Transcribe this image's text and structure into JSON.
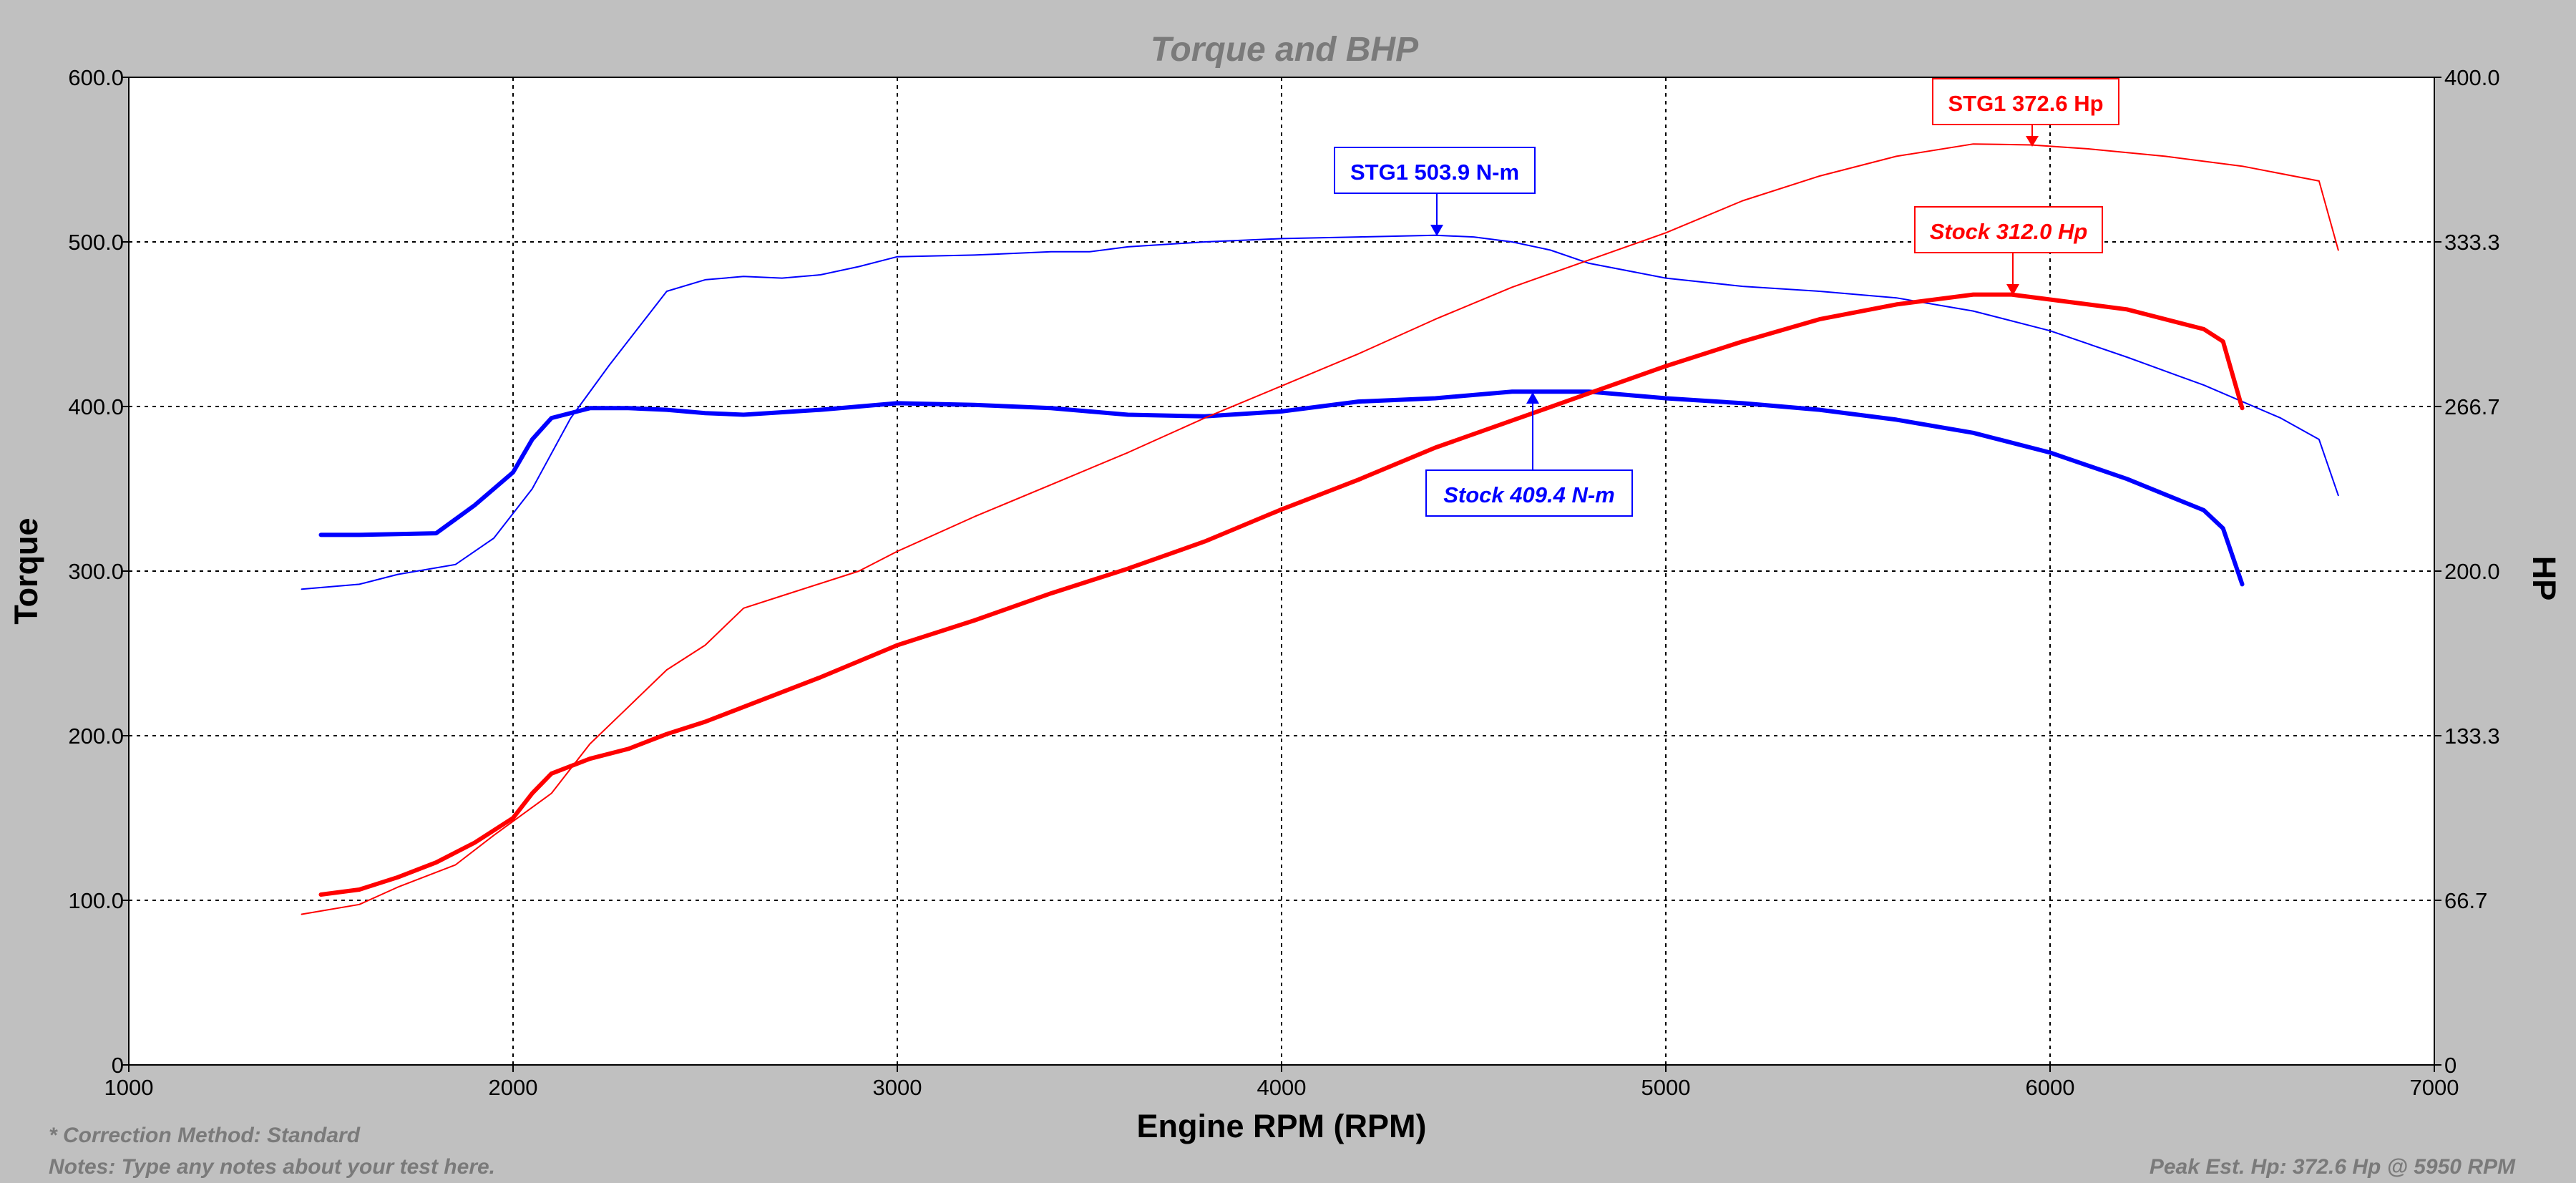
{
  "chart_data": {
    "type": "line",
    "title": "Torque and BHP",
    "xlabel": "Engine RPM (RPM)",
    "ylabel": "Torque",
    "y2label": "HP",
    "xlim": [
      1000,
      7000
    ],
    "ylim": [
      0,
      600
    ],
    "y2lim": [
      0,
      400
    ],
    "grid": true,
    "x_ticks": [
      "1000",
      "2000",
      "3000",
      "4000",
      "5000",
      "6000",
      "7000"
    ],
    "y_ticks": [
      "0",
      "100.0",
      "200.0",
      "300.0",
      "400.0",
      "500.0",
      "600.0"
    ],
    "y2_ticks": [
      "0",
      "66.7",
      "133.3",
      "200.0",
      "266.7",
      "333.3",
      "400.0"
    ],
    "series": [
      {
        "axis": "left",
        "color": "#0000ff",
        "width": 2,
        "x": [
          1450,
          1600,
          1700,
          1850,
          1950,
          2050,
          2150,
          2250,
          2350,
          2400,
          2500,
          2600,
          2700,
          2800,
          2900,
          3000,
          3200,
          3400,
          3500,
          3600,
          3800,
          4000,
          4200,
          4400,
          4500,
          4600,
          4700,
          4800,
          5000,
          5200,
          5400,
          5600,
          5800,
          6000,
          6200,
          6400,
          6600,
          6700,
          6750
        ],
        "y": [
          289,
          292,
          298,
          304,
          320,
          350,
          393,
          425,
          455,
          470,
          477,
          479,
          478,
          480,
          485,
          491,
          492,
          494,
          494,
          497,
          500,
          502,
          503,
          504,
          503,
          500,
          495,
          487,
          478,
          473,
          470,
          466,
          458,
          446,
          430,
          413,
          393,
          380,
          346
        ]
      },
      {
        "axis": "left",
        "color": "#0000ff",
        "width": 6,
        "x": [
          1500,
          1600,
          1800,
          1900,
          2000,
          2050,
          2100,
          2200,
          2300,
          2400,
          2500,
          2600,
          2800,
          3000,
          3200,
          3400,
          3600,
          3800,
          4000,
          4200,
          4400,
          4600,
          4800,
          5000,
          5200,
          5400,
          5600,
          5800,
          6000,
          6200,
          6400,
          6450,
          6500
        ],
        "y": [
          322,
          322,
          323,
          340,
          360,
          380,
          393,
          399,
          399,
          398,
          396,
          395,
          398,
          402,
          401,
          399,
          395,
          394,
          397,
          403,
          405,
          409,
          409,
          405,
          402,
          398,
          392,
          384,
          372,
          356,
          337,
          326,
          292
        ]
      },
      {
        "axis": "right",
        "color": "#ff0000",
        "width": 2,
        "x": [
          1450,
          1600,
          1700,
          1850,
          1950,
          2100,
          2200,
          2300,
          2400,
          2500,
          2600,
          2700,
          2900,
          3000,
          3200,
          3400,
          3600,
          3800,
          4000,
          4200,
          4400,
          4600,
          4800,
          5000,
          5200,
          5400,
          5600,
          5800,
          5950,
          6100,
          6300,
          6500,
          6700,
          6750
        ],
        "y": [
          61,
          65,
          72,
          81,
          93,
          110,
          130,
          145,
          160,
          170,
          185,
          190,
          200,
          208,
          222,
          235,
          248,
          262,
          275,
          288,
          302,
          315,
          326,
          337,
          350,
          360,
          368,
          373,
          372.6,
          371,
          368,
          364,
          358,
          330
        ]
      },
      {
        "axis": "right",
        "color": "#ff0000",
        "width": 6,
        "x": [
          1500,
          1600,
          1700,
          1800,
          1900,
          2000,
          2050,
          2100,
          2200,
          2300,
          2400,
          2500,
          2600,
          2800,
          3000,
          3200,
          3400,
          3600,
          3800,
          4000,
          4200,
          4400,
          4600,
          4800,
          5000,
          5200,
          5400,
          5600,
          5800,
          5900,
          6000,
          6200,
          6400,
          6450,
          6500
        ],
        "y": [
          69,
          71,
          76,
          82,
          90,
          100,
          110,
          118,
          124,
          128,
          134,
          139,
          145,
          157,
          170,
          180,
          191,
          201,
          212,
          225,
          237,
          250,
          261,
          272,
          283,
          293,
          302,
          308,
          312,
          312,
          310,
          306,
          298,
          293,
          266
        ]
      }
    ],
    "annotations": [
      {
        "text": "STG1 503.9 N-m",
        "color": "#0000ff",
        "italic": false
      },
      {
        "text": "Stock 409.4 N-m",
        "color": "#0000ff",
        "italic": true
      },
      {
        "text": "STG1 372.6 Hp",
        "color": "#ff0000",
        "italic": false
      },
      {
        "text": "Stock 312.0 Hp",
        "color": "#ff0000",
        "italic": true
      }
    ],
    "notes": {
      "correction": "* Correction Method: Standard",
      "notes": "Notes: Type any notes about your test here.",
      "peak": "Peak Est. Hp: 372.6 Hp @ 5950 RPM"
    }
  }
}
